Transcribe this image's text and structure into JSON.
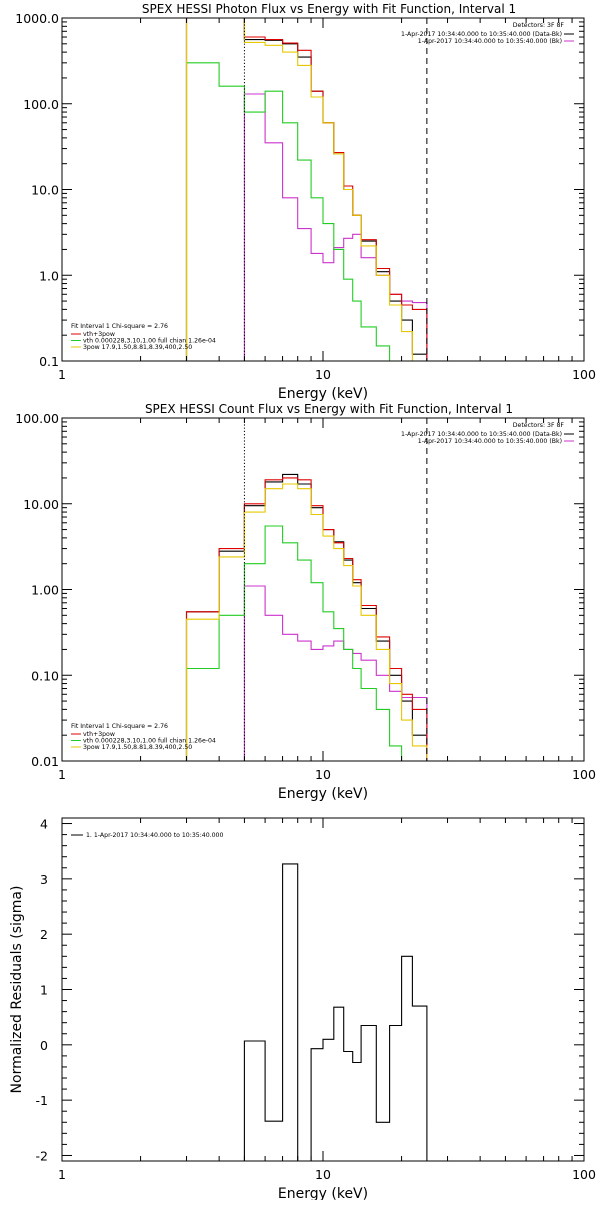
{
  "chart_data": [
    {
      "type": "line",
      "step": true,
      "title": "SPEX HESSI Photon Flux vs Energy with Fit Function, Interval 1",
      "xlabel": "Energy (keV)",
      "ylabel": "",
      "xscale": "log",
      "yscale": "log",
      "xlim": [
        1,
        100
      ],
      "ylim": [
        0.1,
        1000
      ],
      "xticks": [
        "1",
        "10",
        "100"
      ],
      "yticks": [
        "1000.0",
        "100.0",
        "10.0",
        "1.0",
        "0.1"
      ],
      "legend_top_right": {
        "header": "Detectors: 3F 8F",
        "entries": [
          {
            "label": "1-Apr-2017 10:34:40.000 to 10:35:40.000 (Data-Bk)",
            "color": "#000000"
          },
          {
            "label": "1-Apr-2017 10:34:40.000 to 10:35:40.000 (Bk)",
            "color": "#cc33cc"
          }
        ]
      },
      "legend_bottom_left": {
        "header": "Fit Interval 1    Chi-square = 2.76",
        "entries": [
          {
            "label": "vth+3pow",
            "color": "#dd0000"
          },
          {
            "label": "vth 0.000228,3.10,1.00  full chian 1.26e-04",
            "color": "#22cc22"
          },
          {
            "label": "3pow 17.9,1.50,8.81,8.39,400,2.50",
            "color": "#e6c800"
          }
        ]
      },
      "vlines": [
        {
          "x": 5,
          "style": "dotted",
          "color": "#000000"
        },
        {
          "x": 25,
          "style": "dashed",
          "color": "#000000"
        }
      ],
      "edges": [
        3,
        4,
        5,
        6,
        7,
        8,
        9,
        10,
        11,
        12,
        13,
        14,
        16,
        18,
        20,
        22,
        25
      ],
      "series": [
        {
          "name": "Data-Bk",
          "color": "#000000",
          "values": [
            1000,
            1000,
            560,
            550,
            500,
            350,
            140,
            60,
            26,
            10,
            5,
            2.5,
            1.1,
            0.5,
            0.3,
            0.12
          ]
        },
        {
          "name": "Bk",
          "color": "#cc33cc",
          "values": [
            null,
            null,
            130,
            35,
            8,
            3.5,
            1.8,
            1.4,
            2.1,
            2.7,
            3,
            1.6,
            1.0,
            0.6,
            0.5,
            0.48
          ]
        },
        {
          "name": "vth+3pow",
          "color": "#dd0000",
          "values": [
            1000,
            1000,
            600,
            560,
            510,
            420,
            140,
            60,
            27,
            11,
            5,
            2.6,
            1.2,
            0.6,
            0.45,
            0.4
          ]
        },
        {
          "name": "vth",
          "color": "#22cc22",
          "values": [
            300,
            160,
            80,
            140,
            60,
            22,
            8,
            4,
            2,
            0.9,
            0.5,
            0.25,
            0.15,
            null,
            null,
            null
          ]
        },
        {
          "name": "3pow",
          "color": "#e6c800",
          "values": [
            1000,
            1000,
            520,
            480,
            400,
            280,
            120,
            60,
            26,
            10,
            5,
            2.2,
            1.0,
            0.45,
            0.22,
            0.1
          ]
        }
      ]
    },
    {
      "type": "line",
      "step": true,
      "title": "SPEX HESSI Count Flux vs Energy with Fit Function, Interval 1",
      "xlabel": "Energy (keV)",
      "ylabel": "",
      "xscale": "log",
      "yscale": "log",
      "xlim": [
        1,
        100
      ],
      "ylim": [
        0.01,
        100
      ],
      "xticks": [
        "1",
        "10",
        "100"
      ],
      "yticks": [
        "100.00",
        "10.00",
        "1.00",
        "0.10",
        "0.01"
      ],
      "legend_top_right": {
        "header": "Detectors: 3F 8F",
        "entries": [
          {
            "label": "1-Apr-2017 10:34:40.000 to 10:35:40.000 (Data-Bk)",
            "color": "#000000"
          },
          {
            "label": "1-Apr-2017 10:34:40.000 to 10:35:40.000 (Bk)",
            "color": "#cc33cc"
          }
        ]
      },
      "legend_bottom_left": {
        "header": "Fit Interval 1    Chi-square = 2.76",
        "entries": [
          {
            "label": "vth+3pow",
            "color": "#dd0000"
          },
          {
            "label": "vth 0.000228,3.10,1.00  full chian 1.26e-04",
            "color": "#22cc22"
          },
          {
            "label": "3pow 17.9,1.50,8.81,8.39,400,2.50",
            "color": "#e6c800"
          }
        ]
      },
      "vlines": [
        {
          "x": 5,
          "style": "dotted",
          "color": "#000000"
        },
        {
          "x": 25,
          "style": "dashed",
          "color": "#000000"
        }
      ],
      "edges": [
        3,
        4,
        5,
        6,
        7,
        8,
        9,
        10,
        11,
        12,
        13,
        14,
        16,
        18,
        20,
        22,
        25
      ],
      "series": [
        {
          "name": "Data-Bk",
          "color": "#000000",
          "values": [
            0.55,
            2.8,
            9.5,
            18,
            22,
            17,
            9,
            5,
            3.6,
            2.2,
            1.2,
            0.6,
            0.25,
            0.1,
            0.05,
            0.02
          ]
        },
        {
          "name": "Bk",
          "color": "#cc33cc",
          "values": [
            null,
            null,
            1.1,
            0.5,
            0.3,
            0.25,
            0.2,
            0.22,
            0.25,
            0.2,
            0.18,
            0.15,
            0.1,
            0.065,
            0.055,
            0.055
          ]
        },
        {
          "name": "vth+3pow",
          "color": "#dd0000",
          "values": [
            0.55,
            3.0,
            10,
            19,
            20,
            19,
            9.5,
            5,
            3.5,
            2.3,
            1.3,
            0.65,
            0.28,
            0.12,
            0.06,
            0.04
          ]
        },
        {
          "name": "vth",
          "color": "#22cc22",
          "values": [
            0.12,
            0.5,
            2.0,
            5.5,
            3.5,
            2.2,
            1.2,
            0.55,
            0.35,
            0.2,
            0.12,
            0.07,
            0.04,
            0.015,
            null,
            null
          ]
        },
        {
          "name": "3pow",
          "color": "#e6c800",
          "values": [
            0.45,
            2.4,
            8,
            15,
            17,
            15,
            7.5,
            4.2,
            3,
            1.9,
            1.1,
            0.5,
            0.2,
            0.08,
            0.03,
            0.015
          ]
        }
      ]
    },
    {
      "type": "line",
      "step": true,
      "title": "",
      "xlabel": "Energy (keV)",
      "ylabel": "Normalized Residuals (sigma)",
      "xscale": "log",
      "yscale": "linear",
      "xlim": [
        1,
        100
      ],
      "ylim": [
        -2.1,
        4.1
      ],
      "xticks": [
        "1",
        "10",
        "100"
      ],
      "yticks": [
        "4",
        "3",
        "2",
        "1",
        "0",
        "-1",
        "-2"
      ],
      "legend_top_left": {
        "entries": [
          {
            "label": "1. 1-Apr-2017 10:34:40.000 to 10:35:40.000",
            "color": "#000000"
          }
        ]
      },
      "edges": [
        5,
        6,
        7,
        8,
        9,
        10,
        11,
        12,
        13,
        14,
        16,
        18,
        20,
        22,
        25
      ],
      "series": [
        {
          "name": "1. 1-Apr-2017 10:34:40.000 to 10:35:40.000",
          "color": "#000000",
          "values": [
            0.07,
            -1.38,
            3.27,
            -2.1,
            -0.07,
            0.1,
            0.68,
            -0.12,
            -0.32,
            0.35,
            -1.4,
            0.35,
            1.6,
            0.7
          ]
        }
      ]
    }
  ]
}
